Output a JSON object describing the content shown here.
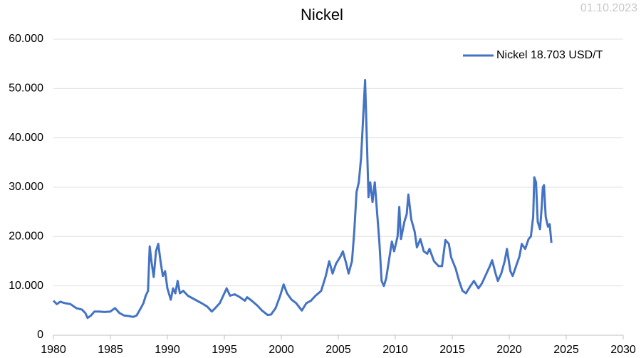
{
  "chart_data": {
    "type": "line",
    "title": "Nickel",
    "date_label": "01.10.2023",
    "x": [
      1980.0,
      1980.3,
      1980.6,
      1981.0,
      1981.5,
      1982.0,
      1982.5,
      1982.8,
      1983.0,
      1983.3,
      1983.6,
      1984.0,
      1984.5,
      1985.0,
      1985.4,
      1985.8,
      1986.2,
      1986.6,
      1987.0,
      1987.3,
      1987.6,
      1987.9,
      1988.1,
      1988.3,
      1988.45,
      1988.6,
      1988.8,
      1989.0,
      1989.2,
      1989.4,
      1989.6,
      1989.8,
      1990.0,
      1990.3,
      1990.5,
      1990.7,
      1990.9,
      1991.1,
      1991.4,
      1991.8,
      1992.2,
      1992.6,
      1993.0,
      1993.5,
      1993.9,
      1994.2,
      1994.6,
      1995.0,
      1995.2,
      1995.5,
      1995.9,
      1996.3,
      1996.8,
      1997.0,
      1997.4,
      1997.9,
      1998.3,
      1998.8,
      1999.1,
      1999.5,
      1999.9,
      2000.2,
      2000.5,
      2000.9,
      2001.3,
      2001.8,
      2002.2,
      2002.6,
      2003.0,
      2003.5,
      2003.9,
      2004.2,
      2004.5,
      2004.8,
      2005.2,
      2005.4,
      2005.7,
      2005.9,
      2006.2,
      2006.4,
      2006.6,
      2006.8,
      2007.0,
      2007.2,
      2007.35,
      2007.5,
      2007.65,
      2007.8,
      2008.0,
      2008.2,
      2008.4,
      2008.6,
      2008.8,
      2009.0,
      2009.2,
      2009.5,
      2009.7,
      2009.9,
      2010.2,
      2010.35,
      2010.5,
      2010.8,
      2011.0,
      2011.15,
      2011.4,
      2011.7,
      2011.9,
      2012.2,
      2012.5,
      2012.8,
      2013.0,
      2013.4,
      2013.8,
      2014.1,
      2014.4,
      2014.7,
      2014.9,
      2015.3,
      2015.6,
      2015.9,
      2016.2,
      2016.6,
      2016.9,
      2017.3,
      2017.6,
      2017.9,
      2018.3,
      2018.5,
      2018.8,
      2019.0,
      2019.3,
      2019.6,
      2019.8,
      2020.1,
      2020.3,
      2020.6,
      2020.9,
      2021.1,
      2021.4,
      2021.7,
      2021.9,
      2022.1,
      2022.2,
      2022.35,
      2022.5,
      2022.7,
      2022.85,
      2022.95,
      2023.05,
      2023.2,
      2023.4,
      2023.55,
      2023.7
    ],
    "series": [
      {
        "name": "Nickel 18.703 USD/T",
        "color": "#4472c4",
        "values": [
          7000,
          6300,
          6800,
          6500,
          6300,
          5500,
          5200,
          4500,
          3500,
          4000,
          4800,
          4800,
          4700,
          4800,
          5500,
          4500,
          4000,
          3900,
          3700,
          4000,
          5200,
          6500,
          8000,
          9000,
          18000,
          15000,
          11800,
          17000,
          18500,
          15000,
          12000,
          13000,
          9500,
          7200,
          9500,
          8500,
          11000,
          8500,
          9000,
          8000,
          7500,
          7000,
          6500,
          5800,
          4800,
          5500,
          6500,
          8500,
          9500,
          8000,
          8300,
          7800,
          7000,
          7700,
          7000,
          6000,
          5000,
          4100,
          4200,
          5500,
          8000,
          10300,
          8500,
          7200,
          6500,
          5000,
          6500,
          7000,
          8000,
          9000,
          12000,
          15000,
          12500,
          14500,
          16000,
          17000,
          14500,
          12500,
          15000,
          21000,
          29000,
          31000,
          36000,
          45000,
          51700,
          40000,
          28000,
          31000,
          27000,
          31000,
          25000,
          19000,
          11000,
          10000,
          11500,
          16000,
          19000,
          17000,
          20000,
          26000,
          19500,
          23000,
          24500,
          28500,
          23500,
          21000,
          17800,
          19500,
          17000,
          16500,
          17500,
          15000,
          14000,
          14000,
          19300,
          18500,
          15800,
          13500,
          11000,
          9000,
          8500,
          10000,
          11000,
          9500,
          10500,
          12000,
          14000,
          15200,
          12500,
          11000,
          12500,
          15000,
          17500,
          13000,
          12000,
          14000,
          16000,
          18500,
          17500,
          19500,
          20000,
          24000,
          32000,
          31000,
          23000,
          21500,
          26000,
          30000,
          30400,
          24000,
          22000,
          22500,
          18703
        ]
      }
    ],
    "xlim": [
      1980,
      2030
    ],
    "xticks": [
      1980,
      1985,
      1990,
      1995,
      2000,
      2005,
      2010,
      2015,
      2020,
      2025,
      2030
    ],
    "ylim": [
      0,
      60000
    ],
    "yticks": [
      0,
      {
        "value": 10000,
        "label": "10.000"
      },
      {
        "value": 20000,
        "label": "20.000"
      },
      {
        "value": 30000,
        "label": "30.000"
      },
      {
        "value": 40000,
        "label": "40.000"
      },
      {
        "value": 50000,
        "label": "50.000"
      },
      {
        "value": 60000,
        "label": "60.000"
      }
    ],
    "grid": true,
    "legend": "top-right"
  }
}
